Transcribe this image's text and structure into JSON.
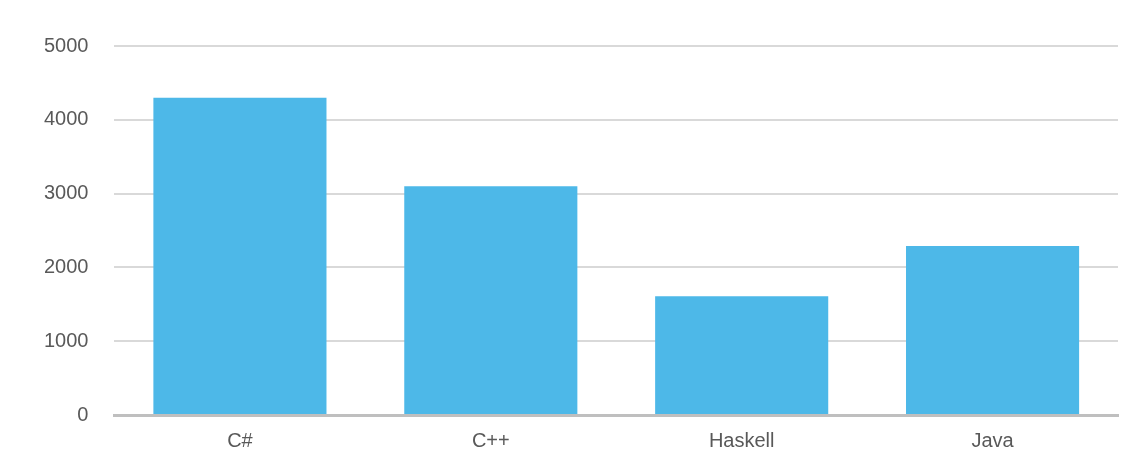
{
  "chart_data": {
    "type": "bar",
    "categories": [
      "C#",
      "C++",
      "Haskell",
      "Java"
    ],
    "values": [
      4300,
      3100,
      1610,
      2290
    ],
    "color": "#4db8e8",
    "ylim": [
      0,
      5000
    ],
    "yticks": [
      0,
      1000,
      2000,
      3000,
      4000,
      5000
    ],
    "grid": "y"
  }
}
